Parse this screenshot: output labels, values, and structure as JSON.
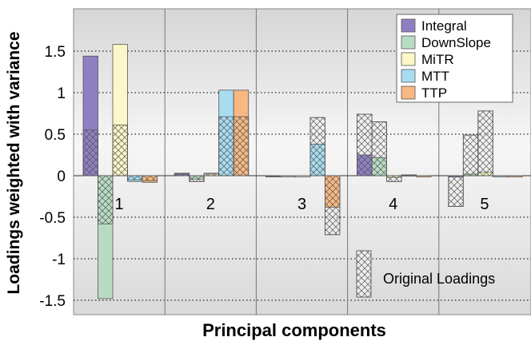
{
  "chart_data": {
    "type": "bar",
    "title": "",
    "xlabel": "Principal components",
    "ylabel": "Loadings weighted with variance",
    "ylim": [
      -1.65,
      2.0
    ],
    "yticks": [
      -1.5,
      -1,
      -0.5,
      0,
      0.5,
      1,
      1.5
    ],
    "ytick_labels": [
      "-1.5",
      "-1",
      "-0.5",
      "0",
      "0.5",
      "1",
      "1.5"
    ],
    "grid": "horizontal dotted",
    "categories": [
      "1",
      "2",
      "3",
      "4",
      "5"
    ],
    "series": [
      {
        "name": "Integral",
        "color": "#8f7fc2",
        "values": [
          1.44,
          0.03,
          -0.01,
          0.25,
          -0.01
        ],
        "original": [
          0.55,
          0.02,
          -0.01,
          0.74,
          -0.37
        ]
      },
      {
        "name": "DownSlope",
        "color": "#b8dcc2",
        "values": [
          -1.48,
          -0.04,
          0.0,
          0.22,
          0.02
        ],
        "original": [
          -0.58,
          -0.07,
          0.0,
          0.65,
          0.49
        ]
      },
      {
        "name": "MiTR",
        "color": "#fbf7c8",
        "values": [
          1.58,
          0.03,
          0.0,
          -0.02,
          0.04
        ],
        "original": [
          0.61,
          0.02,
          0.0,
          -0.07,
          0.78
        ]
      },
      {
        "name": "MTT",
        "color": "#a8dcf0",
        "values": [
          -0.07,
          1.03,
          0.38,
          0.01,
          0.0
        ],
        "original": [
          -0.05,
          0.71,
          0.7,
          0.01,
          0.0
        ]
      },
      {
        "name": "TTP",
        "color": "#f7b882",
        "values": [
          -0.08,
          1.03,
          -0.38,
          0.0,
          0.0
        ],
        "original": [
          -0.06,
          0.71,
          -0.71,
          0.0,
          0.0
        ]
      }
    ],
    "legend": {
      "placement": "top-right"
    },
    "annotation": {
      "text": "Original Loadings",
      "placement": "bottom-right"
    }
  }
}
